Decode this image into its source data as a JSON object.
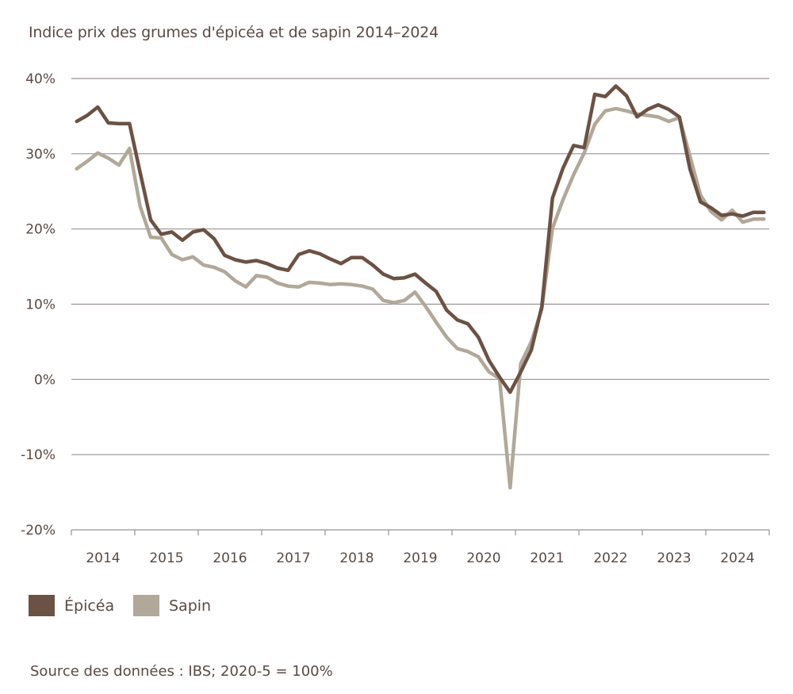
{
  "chart_data": {
    "type": "line",
    "title": "Indice prix des grumes d'épicéa et de sapin 2014–2024",
    "xlabel": "",
    "ylabel": "",
    "ylim": [
      -20,
      40
    ],
    "y_ticks": [
      "40%",
      "30%",
      "20%",
      "10%",
      "0%",
      "-10%",
      "-20%"
    ],
    "y_tick_values": [
      40,
      30,
      20,
      10,
      0,
      -10,
      -20
    ],
    "x_tick_labels": [
      "2014",
      "2015",
      "2016",
      "2017",
      "2018",
      "2019",
      "2020",
      "2021",
      "2022",
      "2023",
      "2024"
    ],
    "x_periods_per_year": 6,
    "grid": "horizontal",
    "legend_placement": "bottom-left",
    "series": [
      {
        "name": "Épicéa",
        "color": "#6b5244",
        "values": [
          34.3,
          35.1,
          36.2,
          34.1,
          34.0,
          34.0,
          27.5,
          21.2,
          19.3,
          19.6,
          18.5,
          19.6,
          19.9,
          18.7,
          16.5,
          15.9,
          15.6,
          15.8,
          15.4,
          14.8,
          14.5,
          16.6,
          17.1,
          16.7,
          16.0,
          15.4,
          16.2,
          16.2,
          15.2,
          14.0,
          13.4,
          13.5,
          14.0,
          12.8,
          11.7,
          9.2,
          7.9,
          7.4,
          5.6,
          2.5,
          0.3,
          -1.7,
          1.0,
          3.9,
          9.7,
          24.1,
          28.1,
          31.1,
          30.8,
          37.9,
          37.6,
          39.0,
          37.7,
          34.9,
          35.9,
          36.5,
          35.9,
          34.9,
          28.0,
          23.6,
          22.8,
          21.8,
          22.0,
          21.7,
          22.2,
          22.2
        ]
      },
      {
        "name": "Sapin",
        "color": "#b1a899",
        "values": [
          28.0,
          29.0,
          30.1,
          29.4,
          28.5,
          30.7,
          23.0,
          18.9,
          18.8,
          16.6,
          15.9,
          16.3,
          15.2,
          14.9,
          14.3,
          13.1,
          12.3,
          13.8,
          13.6,
          12.8,
          12.4,
          12.3,
          12.9,
          12.8,
          12.6,
          12.7,
          12.6,
          12.4,
          12.0,
          10.5,
          10.2,
          10.5,
          11.6,
          9.7,
          7.6,
          5.6,
          4.1,
          3.7,
          3.0,
          1.0,
          0.1,
          -14.4,
          2.1,
          5.0,
          9.4,
          20.1,
          23.9,
          27.2,
          30.1,
          33.9,
          35.7,
          36.0,
          35.7,
          35.3,
          35.1,
          34.9,
          34.3,
          34.8,
          29.7,
          24.5,
          22.3,
          21.2,
          22.5,
          20.9,
          21.3,
          21.3
        ]
      }
    ]
  },
  "legend": {
    "items": [
      "Épicéa",
      "Sapin"
    ]
  },
  "source": "Source des données : IBS; 2020-5 = 100%"
}
